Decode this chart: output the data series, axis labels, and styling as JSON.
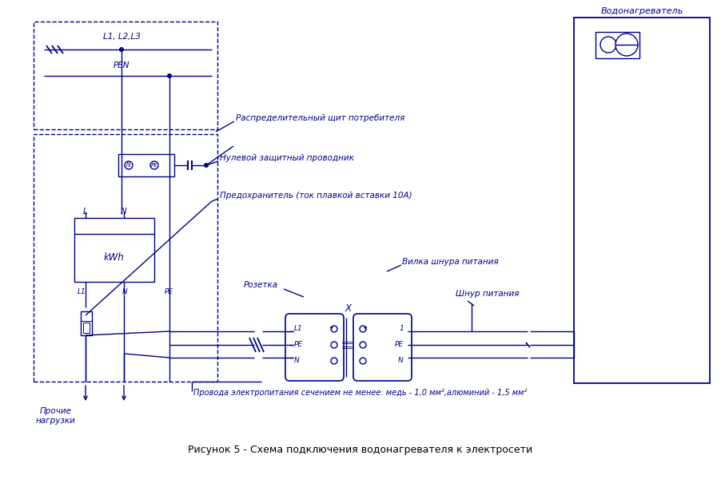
{
  "title": "Рисунок 5 - Схема подключения водонагревателя к электросети",
  "line_color": "#00008B",
  "bg_color": "#FFFFFF",
  "text_color": "#00008B",
  "L1L2L3": "L1, L2,L3",
  "PEN": "PEN",
  "dist_panel": "Распределительный щит потребителя",
  "zero_protect": "Нулевой защитный проводник",
  "fuse_label": "Предохранитель (ток плавкой вставки 10А)",
  "socket_label": "Розетка",
  "plug_label": "Вилка шнура питания",
  "cord_label": "Шнур питания",
  "wire_note": "Провода электропитания сечением не менее: медь - 1,0 мм²,алюминий - 1,5 мм²",
  "other_loads": "Прочие\nнагрузки",
  "water_heater": "Водонагреватель",
  "kWh_label": "kWh",
  "X_label": "X",
  "L_label": "L",
  "N_label": "N",
  "L1_label": "L1",
  "PE_label": "PE",
  "one_label": "1"
}
